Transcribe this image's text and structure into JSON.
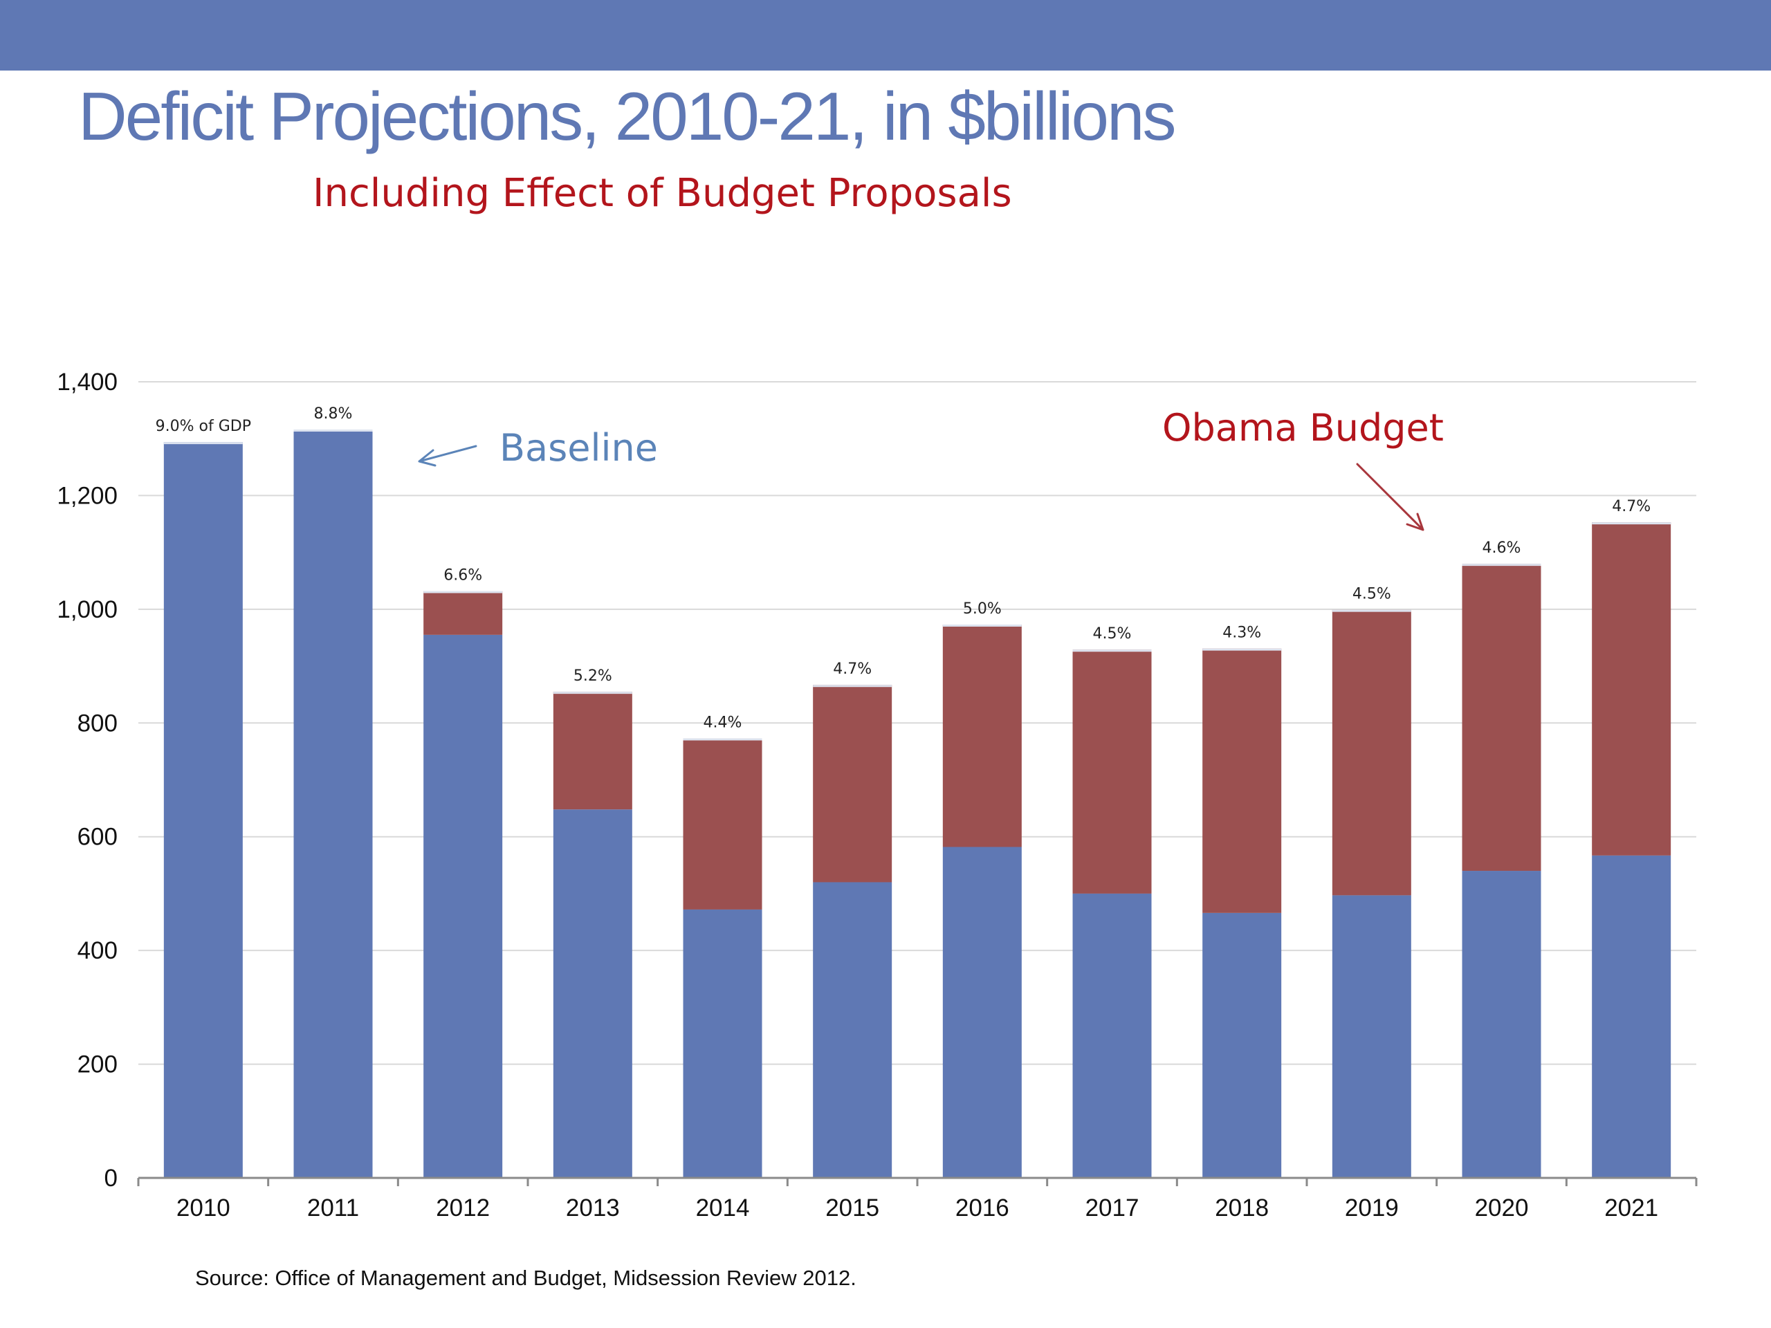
{
  "title": "Deficit Projections, 2010-21, in $billions",
  "subtitle": "Including Effect of Budget Proposals",
  "source": "Source:  Office of Management and Budget, Midsession Review 2012.",
  "colors": {
    "band": "#5f78b4",
    "baseline": "#5f78b4",
    "proposals": "#9b5050",
    "title": "#5f78b4",
    "subtitle": "#b3151c"
  },
  "chart_data": {
    "type": "bar",
    "stacked": true,
    "categories": [
      "2010",
      "2011",
      "2012",
      "2013",
      "2014",
      "2015",
      "2016",
      "2017",
      "2018",
      "2019",
      "2020",
      "2021"
    ],
    "series": [
      {
        "name": "Baseline",
        "color": "#5f78b4",
        "values": [
          1294,
          1316,
          955,
          648,
          472,
          520,
          582,
          500,
          466,
          497,
          540,
          567
        ]
      },
      {
        "color": "#9b5050",
        "values": [
          0,
          0,
          77,
          207,
          301,
          347,
          391,
          429,
          465,
          502,
          540,
          586
        ]
      }
    ],
    "bar_labels": [
      "9.0% of GDP",
      "8.8%",
      "6.6%",
      "5.2%",
      "4.4%",
      "4.7%",
      "5.0%",
      "4.5%",
      "4.3%",
      "4.5%",
      "4.6%",
      "4.7%"
    ],
    "y_ticks": [
      "0",
      "200",
      "400",
      "600",
      "800",
      "1,000",
      "1,200",
      "1,400"
    ],
    "ylim": [
      0,
      1400
    ],
    "grid": true,
    "annotations": [
      {
        "text": "Baseline",
        "points_to": "2011 baseline bar",
        "color": "#5b84b8"
      },
      {
        "text": "Obama Budget",
        "points_to": "2020 proposals segment",
        "color": "#b3151c"
      }
    ]
  }
}
